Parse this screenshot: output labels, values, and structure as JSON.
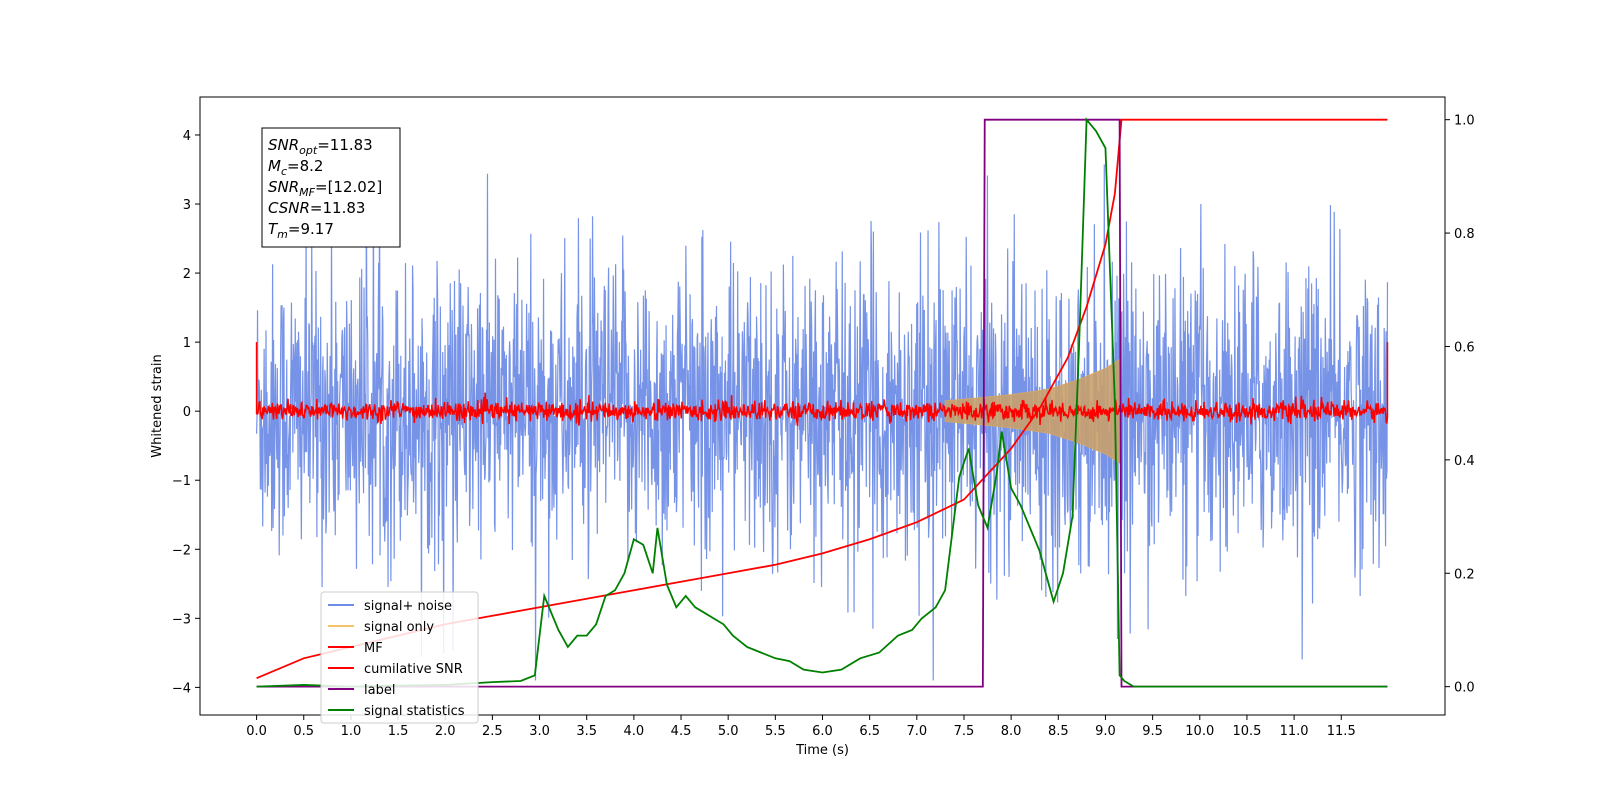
{
  "chart_data": {
    "type": "line",
    "xlabel": "Time (s)",
    "ylabel": "Whitened strain",
    "xlim": [
      -0.6,
      12.6
    ],
    "ylim": [
      -4.4,
      4.55
    ],
    "ylim_right": [
      -0.05,
      1.04
    ],
    "x_ticks": [
      "0.0",
      "0.5",
      "1.0",
      "1.5",
      "2.0",
      "2.5",
      "3.0",
      "3.5",
      "4.0",
      "4.5",
      "5.0",
      "5.5",
      "6.0",
      "6.5",
      "7.0",
      "7.5",
      "8.0",
      "8.5",
      "9.0",
      "9.5",
      "10.0",
      "10.5",
      "11.0",
      "11.5"
    ],
    "y_ticks": [
      "−4",
      "−3",
      "−2",
      "−1",
      "0",
      "1",
      "2",
      "3",
      "4"
    ],
    "y_ticks_right": [
      "0.0",
      "0.2",
      "0.4",
      "0.6",
      "0.8",
      "1.0"
    ],
    "annotation": {
      "lines": [
        {
          "base": "SNR",
          "sub": "opt",
          "rest": "=11.83"
        },
        {
          "base": "M",
          "sub": "c",
          "rest": "=8.2"
        },
        {
          "base": "SNR",
          "sub": "MF",
          "rest": "=[12.02]"
        },
        {
          "base": "CSNR",
          "sub": "",
          "rest": "=11.83"
        },
        {
          "base": "T",
          "sub": "m",
          "rest": "=9.17"
        }
      ]
    },
    "legend": {
      "placement": "lower-left",
      "entries": [
        {
          "label": "signal+ noise",
          "color": "#6f8de6"
        },
        {
          "label": "signal only",
          "color": "#f5c36a"
        },
        {
          "label": "MF",
          "color": "#ff0000"
        },
        {
          "label": "cumilative SNR",
          "color": "#ff0000"
        },
        {
          "label": "label",
          "color": "#800080"
        },
        {
          "label": "signal statistics",
          "color": "#008000"
        }
      ]
    },
    "series": [
      {
        "name": "signal+ noise",
        "axis": "left",
        "color": "#6f8de6",
        "description_range": [
          0.0,
          11.99
        ],
        "amplitude_sigma": 1.0
      },
      {
        "name": "signal only",
        "axis": "left",
        "color": "#f5c36a",
        "envelope": {
          "x": [
            7.3,
            7.7,
            8.0,
            8.4,
            8.7,
            9.0,
            9.15
          ],
          "y": [
            0.15,
            0.2,
            0.24,
            0.32,
            0.45,
            0.62,
            0.75
          ]
        }
      },
      {
        "name": "MF",
        "axis": "left",
        "color": "#ff0000",
        "noise_band": 0.12,
        "edge_spikes": {
          "x": [
            0.0,
            11.99
          ],
          "y": [
            1.0,
            1.0
          ]
        }
      },
      {
        "name": "cumilative SNR",
        "axis": "right",
        "color": "#ff0000",
        "x": [
          0.0,
          0.5,
          1.0,
          1.5,
          2.0,
          2.5,
          3.0,
          3.5,
          4.0,
          4.5,
          5.0,
          5.5,
          6.0,
          6.5,
          7.0,
          7.5,
          8.0,
          8.3,
          8.6,
          8.8,
          9.0,
          9.1,
          9.17,
          11.99
        ],
        "y": [
          0.015,
          0.05,
          0.07,
          0.09,
          0.11,
          0.125,
          0.14,
          0.155,
          0.17,
          0.185,
          0.2,
          0.215,
          0.235,
          0.26,
          0.29,
          0.33,
          0.42,
          0.49,
          0.58,
          0.67,
          0.78,
          0.87,
          1.0,
          1.0
        ]
      },
      {
        "name": "label",
        "axis": "right",
        "color": "#800080",
        "x": [
          0.0,
          7.7,
          7.72,
          9.15,
          9.17,
          11.99
        ],
        "y": [
          0.0,
          0.0,
          1.0,
          1.0,
          0.0,
          0.0
        ]
      },
      {
        "name": "signal statistics",
        "axis": "right",
        "color": "#008000",
        "x": [
          0.0,
          0.5,
          1.0,
          1.5,
          2.0,
          2.5,
          2.8,
          2.95,
          3.05,
          3.2,
          3.3,
          3.4,
          3.5,
          3.6,
          3.7,
          3.8,
          3.9,
          4.0,
          4.1,
          4.2,
          4.25,
          4.35,
          4.45,
          4.55,
          4.65,
          4.75,
          4.85,
          4.95,
          5.05,
          5.2,
          5.35,
          5.5,
          5.65,
          5.8,
          6.0,
          6.2,
          6.4,
          6.6,
          6.8,
          6.95,
          7.05,
          7.2,
          7.3,
          7.45,
          7.55,
          7.65,
          7.75,
          7.85,
          7.9,
          8.0,
          8.1,
          8.2,
          8.3,
          8.45,
          8.55,
          8.65,
          8.72,
          8.8,
          8.9,
          9.0,
          9.1,
          9.15,
          9.2,
          9.3,
          9.5,
          10.0,
          11.0,
          11.99
        ],
        "y": [
          0.0,
          0.003,
          0.0,
          0.002,
          0.003,
          0.008,
          0.01,
          0.02,
          0.16,
          0.1,
          0.07,
          0.09,
          0.09,
          0.11,
          0.16,
          0.17,
          0.2,
          0.26,
          0.25,
          0.2,
          0.28,
          0.18,
          0.14,
          0.16,
          0.14,
          0.13,
          0.12,
          0.11,
          0.09,
          0.07,
          0.06,
          0.05,
          0.045,
          0.03,
          0.025,
          0.03,
          0.05,
          0.06,
          0.09,
          0.1,
          0.12,
          0.14,
          0.17,
          0.37,
          0.42,
          0.32,
          0.28,
          0.38,
          0.45,
          0.35,
          0.32,
          0.28,
          0.24,
          0.15,
          0.2,
          0.3,
          0.6,
          1.0,
          0.98,
          0.95,
          0.5,
          0.02,
          0.01,
          0.0,
          0.0,
          0.0,
          0.0,
          0.0
        ]
      }
    ]
  }
}
